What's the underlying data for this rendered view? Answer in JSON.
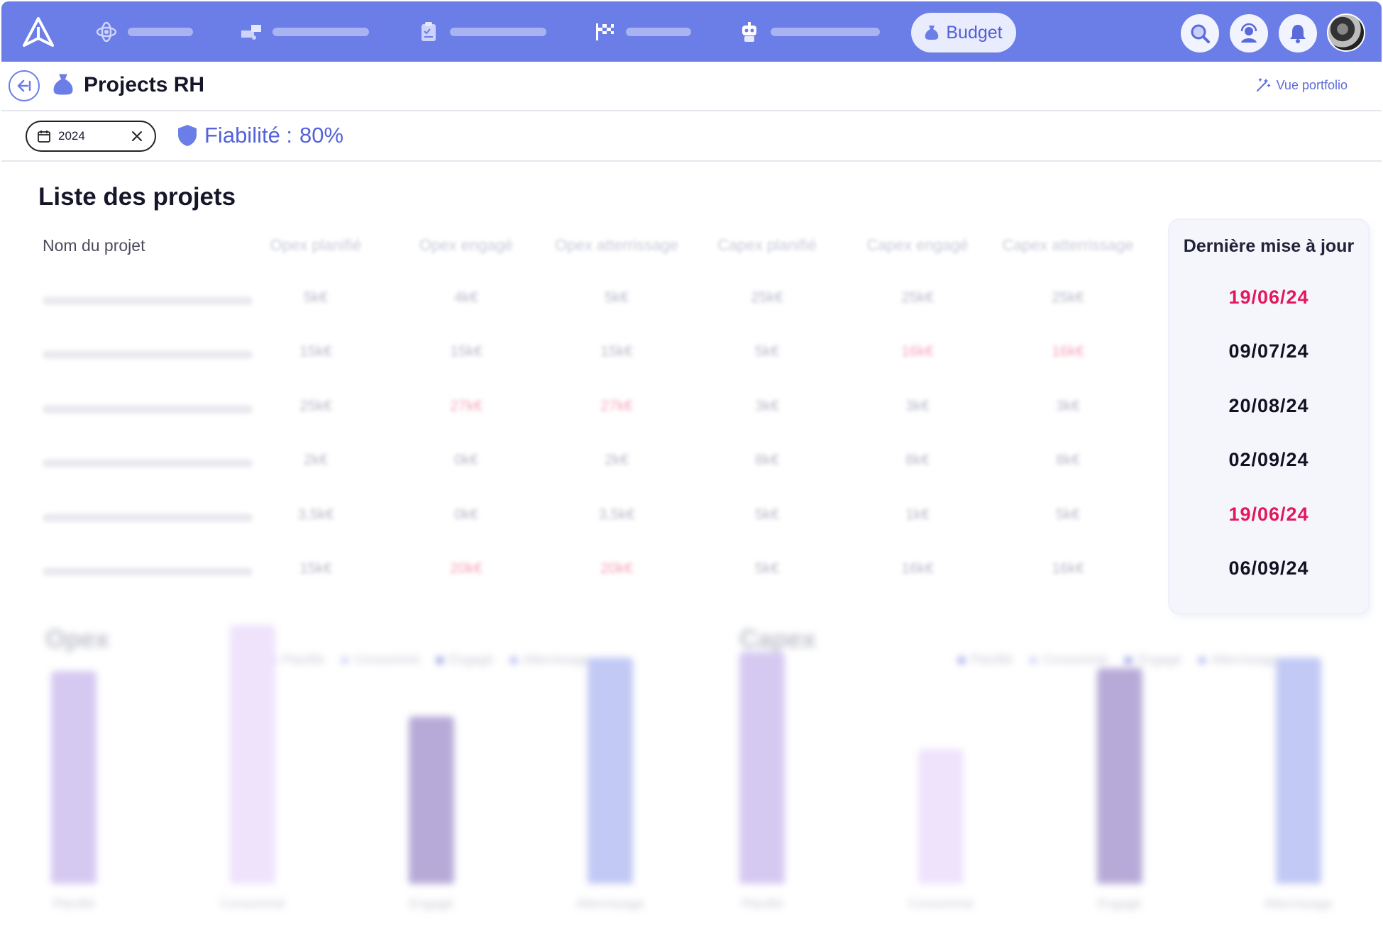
{
  "nav": {
    "budget_label": "Budget",
    "bar_widths": [
      92,
      136,
      136,
      92,
      154
    ]
  },
  "header": {
    "title": "Projects RH",
    "portfolio_label": "Vue portfolio"
  },
  "filters": {
    "year": "2024",
    "reliability_label": "Fiabilité :",
    "reliability_value": "80%"
  },
  "list": {
    "title": "Liste des projets",
    "columns": [
      "Nom du projet",
      "Opex planifié",
      "Opex engagé",
      "Opex atterrissage",
      "Capex planifié",
      "Capex engagé",
      "Capex atterrissage",
      "Dernière mise à jour"
    ],
    "rows": [
      {
        "cells": [
          "5k€",
          "4k€",
          "5k€",
          "25k€",
          "25k€",
          "25k€"
        ],
        "red": [
          false,
          false,
          false,
          false,
          false,
          false
        ],
        "date": "19/06/24",
        "date_red": true
      },
      {
        "cells": [
          "15k€",
          "15k€",
          "15k€",
          "5k€",
          "16k€",
          "16k€"
        ],
        "red": [
          false,
          false,
          false,
          false,
          true,
          true
        ],
        "date": "09/07/24",
        "date_red": false
      },
      {
        "cells": [
          "25k€",
          "27k€",
          "27k€",
          "3k€",
          "3k€",
          "3k€"
        ],
        "red": [
          false,
          true,
          true,
          false,
          false,
          false
        ],
        "date": "20/08/24",
        "date_red": false
      },
      {
        "cells": [
          "2k€",
          "0k€",
          "2k€",
          "8k€",
          "8k€",
          "8k€"
        ],
        "red": [
          false,
          false,
          false,
          false,
          false,
          false
        ],
        "date": "02/09/24",
        "date_red": false
      },
      {
        "cells": [
          "3,5k€",
          "0k€",
          "3,5k€",
          "5k€",
          "1k€",
          "5k€"
        ],
        "red": [
          false,
          false,
          false,
          false,
          false,
          false
        ],
        "date": "19/06/24",
        "date_red": true
      },
      {
        "cells": [
          "15k€",
          "20k€",
          "20k€",
          "5k€",
          "16k€",
          "16k€"
        ],
        "red": [
          false,
          true,
          true,
          false,
          false,
          false
        ],
        "date": "06/09/24",
        "date_red": false
      }
    ]
  },
  "charts": [
    {
      "title": "Opex",
      "legend": [
        "Planifié",
        "Consommé",
        "Engagé",
        "Atterrissage"
      ],
      "categories": [
        "Planifié",
        "Consommé",
        "Engagé",
        "Atterrissage"
      ],
      "values": [
        0.79,
        0.96,
        0.62,
        0.84
      ]
    },
    {
      "title": "Capex",
      "legend": [
        "Planifié",
        "Consommé",
        "Engagé",
        "Atterrissage"
      ],
      "categories": [
        "Planifié",
        "Consommé",
        "Engagé",
        "Atterrissage"
      ],
      "values": [
        0.86,
        0.5,
        0.8,
        0.84
      ]
    }
  ],
  "colors": {
    "nav_bg": "#6b7de6",
    "accent": "#5463d9",
    "alert_red": "#e3185c",
    "series": [
      "#d6c9f1",
      "#efe3fb",
      "#b8aad8",
      "#c2c9f4"
    ]
  }
}
